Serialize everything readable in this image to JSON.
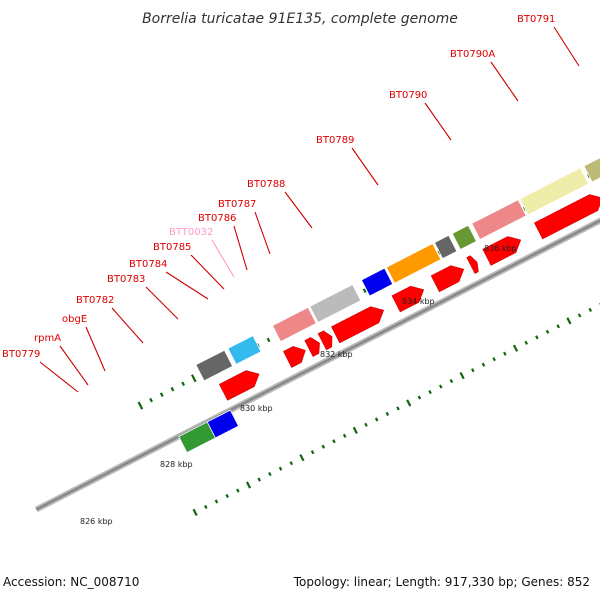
{
  "title": "Borrelia turicatae 91E135, complete genome",
  "footer": {
    "accession": "Accession: NC_008710",
    "summary": "Topology: linear; Length: 917,330 bp; Genes: 852"
  },
  "colors": {
    "label_red": "#dd0000",
    "label_pink": "#ff99cc",
    "callout_line": "#cc0000",
    "gene_red": "#ff0000",
    "backbone_gray": "#888888",
    "tick_green": "#116611"
  },
  "scale_labels": [
    "826 kbp",
    "828 kbp",
    "830 kbp",
    "832 kbp",
    "834 kbp",
    "836 kbp"
  ],
  "gene_labels": [
    {
      "text": "BT0779",
      "color": "#dd0000"
    },
    {
      "text": "rpmA",
      "color": "#dd0000"
    },
    {
      "text": "obgE",
      "color": "#dd0000"
    },
    {
      "text": "BT0782",
      "color": "#dd0000"
    },
    {
      "text": "BT0783",
      "color": "#dd0000"
    },
    {
      "text": "BT0784",
      "color": "#dd0000"
    },
    {
      "text": "BT0785",
      "color": "#dd0000"
    },
    {
      "text": "BTT0032",
      "color": "#ff99cc"
    },
    {
      "text": "BT0786",
      "color": "#dd0000"
    },
    {
      "text": "BT0787",
      "color": "#dd0000"
    },
    {
      "text": "BT0788",
      "color": "#dd0000"
    },
    {
      "text": "BT0789",
      "color": "#dd0000"
    },
    {
      "text": "BT0790",
      "color": "#dd0000"
    },
    {
      "text": "BT0790A",
      "color": "#dd0000"
    },
    {
      "text": "BT0791",
      "color": "#dd0000"
    }
  ],
  "cog_blocks": [
    {
      "color": "#666666"
    },
    {
      "color": "#33bbee"
    },
    {
      "color": "#ee8888"
    },
    {
      "color": "#bbbbbb"
    },
    {
      "color": "#0000ee"
    },
    {
      "color": "#ff9900"
    },
    {
      "color": "#666666"
    },
    {
      "color": "#669933"
    },
    {
      "color": "#ee8888"
    },
    {
      "color": "#eeeeaa"
    },
    {
      "color": "#bbbb77"
    },
    {
      "color": "#bbbb77"
    },
    {
      "color": "#33bbee"
    },
    {
      "color": "#0000ee"
    },
    {
      "color": "#339933"
    }
  ]
}
